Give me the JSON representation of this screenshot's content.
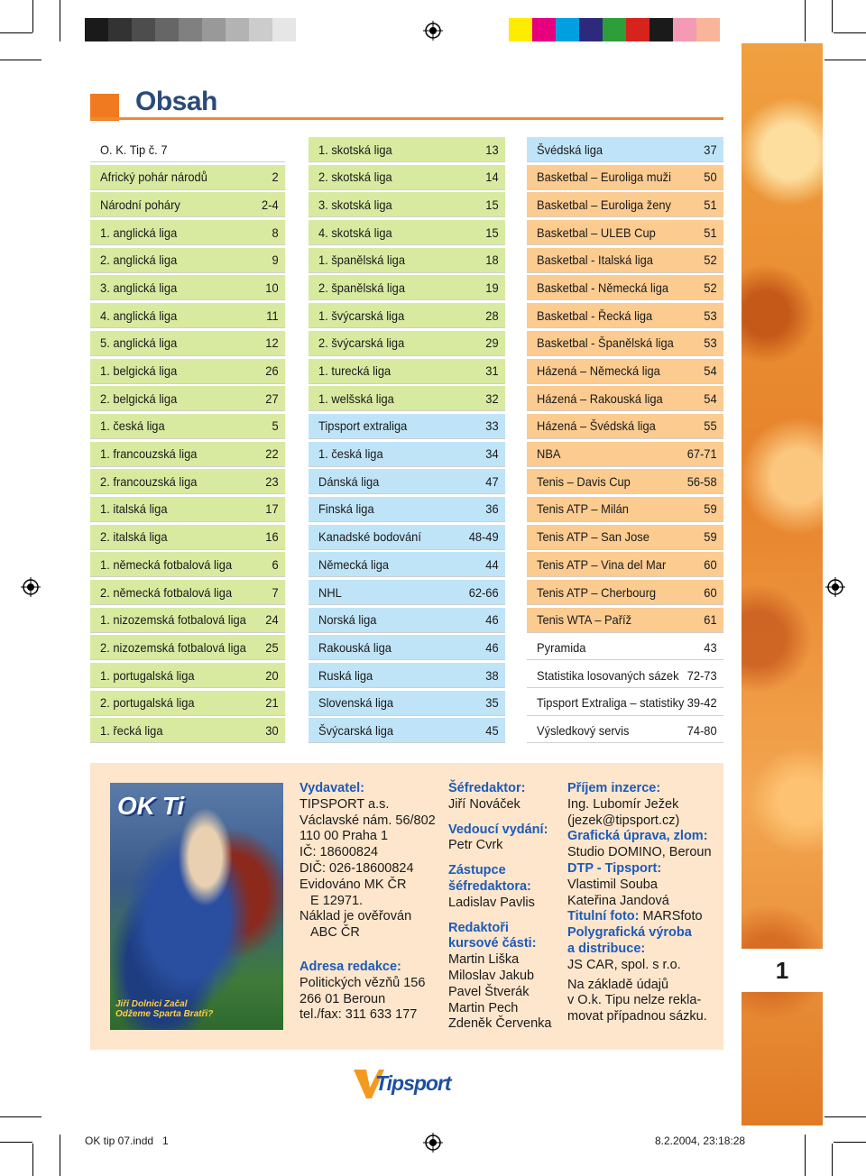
{
  "header": {
    "title": "Obsah"
  },
  "colors": {
    "accent": "#f07a20",
    "title": "#2a4a7a",
    "green": "#d8eaa0",
    "blue": "#bfe4f8",
    "orange": "#fbcb90",
    "white": "#ffffff"
  },
  "color_bar_left": [
    "#1a1a1a",
    "#333333",
    "#4d4d4d",
    "#666666",
    "#808080",
    "#999999",
    "#b3b3b3",
    "#cccccc",
    "#e6e6e6"
  ],
  "color_bar_right": [
    "#ffeb00",
    "#e6007e",
    "#00a0e0",
    "#2d2a7e",
    "#2e9e3a",
    "#d6231e",
    "#1a1a1a",
    "#f49ab4",
    "#f9b49a"
  ],
  "columns": [
    {
      "items": [
        {
          "label": "O. K. Tip č. 7",
          "page": "",
          "c": "white"
        },
        {
          "label": "Africký pohár národů",
          "page": "2",
          "c": "green"
        },
        {
          "label": "Národní poháry",
          "page": "2-4",
          "c": "green"
        },
        {
          "label": "1. anglická liga",
          "page": "8",
          "c": "green"
        },
        {
          "label": "2. anglická liga",
          "page": "9",
          "c": "green"
        },
        {
          "label": "3. anglická liga",
          "page": "10",
          "c": "green"
        },
        {
          "label": "4. anglická liga",
          "page": "11",
          "c": "green"
        },
        {
          "label": "5. anglická liga",
          "page": "12",
          "c": "green"
        },
        {
          "label": "1. belgická liga",
          "page": "26",
          "c": "green"
        },
        {
          "label": "2. belgická liga",
          "page": "27",
          "c": "green"
        },
        {
          "label": "1. česká liga",
          "page": "5",
          "c": "green"
        },
        {
          "label": "1. francouzská liga",
          "page": "22",
          "c": "green"
        },
        {
          "label": "2. francouzská liga",
          "page": "23",
          "c": "green"
        },
        {
          "label": "1. italská liga",
          "page": "17",
          "c": "green"
        },
        {
          "label": "2. italská liga",
          "page": "16",
          "c": "green"
        },
        {
          "label": "1. německá fotbalová liga",
          "page": "6",
          "c": "green"
        },
        {
          "label": "2. německá fotbalová liga",
          "page": "7",
          "c": "green"
        },
        {
          "label": "1. nizozemská fotbalová liga",
          "page": "24",
          "c": "green"
        },
        {
          "label": "2. nizozemská fotbalová liga",
          "page": "25",
          "c": "green"
        },
        {
          "label": "1. portugalská liga",
          "page": "20",
          "c": "green"
        },
        {
          "label": "2. portugalská liga",
          "page": "21",
          "c": "green"
        },
        {
          "label": "1. řecká liga",
          "page": "30",
          "c": "green"
        }
      ]
    },
    {
      "items": [
        {
          "label": "1. skotská liga",
          "page": "13",
          "c": "green"
        },
        {
          "label": "2. skotská liga",
          "page": "14",
          "c": "green"
        },
        {
          "label": "3. skotská liga",
          "page": "15",
          "c": "green"
        },
        {
          "label": "4. skotská liga",
          "page": "15",
          "c": "green"
        },
        {
          "label": "1. španělská liga",
          "page": "18",
          "c": "green"
        },
        {
          "label": "2. španělská liga",
          "page": "19",
          "c": "green"
        },
        {
          "label": "1. švýcarská liga",
          "page": "28",
          "c": "green"
        },
        {
          "label": "2. švýcarská liga",
          "page": "29",
          "c": "green"
        },
        {
          "label": "1. turecká liga",
          "page": "31",
          "c": "green"
        },
        {
          "label": "1. welšská liga",
          "page": "32",
          "c": "green"
        },
        {
          "label": "Tipsport extraliga",
          "page": "33",
          "c": "blue"
        },
        {
          "label": "1. česká liga",
          "page": "34",
          "c": "blue"
        },
        {
          "label": "Dánská liga",
          "page": "47",
          "c": "blue"
        },
        {
          "label": "Finská liga",
          "page": "36",
          "c": "blue"
        },
        {
          "label": "Kanadské bodování",
          "page": "48-49",
          "c": "blue"
        },
        {
          "label": "Německá liga",
          "page": "44",
          "c": "blue"
        },
        {
          "label": "NHL",
          "page": "62-66",
          "c": "blue"
        },
        {
          "label": "Norská liga",
          "page": "46",
          "c": "blue"
        },
        {
          "label": "Rakouská liga",
          "page": "46",
          "c": "blue"
        },
        {
          "label": "Ruská liga",
          "page": "38",
          "c": "blue"
        },
        {
          "label": "Slovenská liga",
          "page": "35",
          "c": "blue"
        },
        {
          "label": "Švýcarská liga",
          "page": "45",
          "c": "blue"
        }
      ]
    },
    {
      "items": [
        {
          "label": "Švédská liga",
          "page": "37",
          "c": "blue"
        },
        {
          "label": "Basketbal – Euroliga muži",
          "page": "50",
          "c": "orange"
        },
        {
          "label": "Basketbal – Euroliga ženy",
          "page": "51",
          "c": "orange"
        },
        {
          "label": "Basketbal – ULEB Cup",
          "page": "51",
          "c": "orange"
        },
        {
          "label": "Basketbal - Italská liga",
          "page": "52",
          "c": "orange"
        },
        {
          "label": "Basketbal - Německá liga",
          "page": "52",
          "c": "orange"
        },
        {
          "label": "Basketbal - Řecká liga",
          "page": "53",
          "c": "orange"
        },
        {
          "label": "Basketbal - Španělská liga",
          "page": "53",
          "c": "orange"
        },
        {
          "label": "Házená – Německá liga",
          "page": "54",
          "c": "orange"
        },
        {
          "label": "Házená – Rakouská liga",
          "page": "54",
          "c": "orange"
        },
        {
          "label": "Házená – Švédská liga",
          "page": "55",
          "c": "orange"
        },
        {
          "label": "NBA",
          "page": "67-71",
          "c": "orange"
        },
        {
          "label": "Tenis – Davis Cup",
          "page": "56-58",
          "c": "orange"
        },
        {
          "label": "Tenis ATP – Milán",
          "page": "59",
          "c": "orange"
        },
        {
          "label": "Tenis ATP – San Jose",
          "page": "59",
          "c": "orange"
        },
        {
          "label": "Tenis ATP – Vina del Mar",
          "page": "60",
          "c": "orange"
        },
        {
          "label": "Tenis ATP – Cherbourg",
          "page": "60",
          "c": "orange"
        },
        {
          "label": "Tenis WTA – Paříž",
          "page": "61",
          "c": "orange"
        },
        {
          "label": "Pyramida",
          "page": "43",
          "c": "white"
        },
        {
          "label": "Statistika losovaných sázek",
          "page": "72-73",
          "c": "white"
        },
        {
          "label": "Tipsport Extraliga – statistiky",
          "page": "39-42",
          "c": "white"
        },
        {
          "label": "Výsledkový servis",
          "page": "74-80",
          "c": "white"
        }
      ]
    }
  ],
  "cover": {
    "logo": "OK Ti",
    "caption": "Jiří Dolnici Začal\nOdžeme Sparta Bratři?"
  },
  "info": {
    "col1": {
      "publisher_h": "Vydavatel:",
      "publisher_lines": [
        "TIPSPORT a.s.",
        "Václavské nám. 56/802",
        "110 00 Praha 1",
        "IČ: 18600824",
        "DIČ: 026-18600824",
        "Evidováno MK ČR",
        "E 12971.",
        "Náklad je ověřován",
        "ABC ČR"
      ],
      "address_h": "Adresa redakce:",
      "address_lines": [
        "Politických vězňů 156",
        "266 01 Beroun",
        "tel./fax: 311 633 177"
      ]
    },
    "col2": {
      "chief_h": "Šéfredaktor:",
      "chief": "Jiří Nováček",
      "lead_h": "Vedoucí vydání:",
      "lead": "Petr Cvrk",
      "deputy_h1": "Zástupce",
      "deputy_h2": "šéfredaktora:",
      "deputy": "Ladislav Pavlis",
      "odds_h1": "Redaktoři",
      "odds_h2": "kursové části:",
      "odds_lines": [
        "Martin Liška",
        "Miloslav Jakub",
        "Pavel Štverák",
        "Martin Pech",
        "Zdeněk Červenka"
      ]
    },
    "col3": {
      "ads_h": "Příjem inzerce:",
      "ads_lines": [
        "Ing. Lubomír Ježek",
        "(jezek@tipsport.cz)"
      ],
      "graphic_h": "Grafická úprava, zlom:",
      "graphic": "Studio DOMINO, Beroun",
      "dtp_h": "DTP - Tipsport:",
      "dtp_lines": [
        "Vlastimil Souba",
        "Kateřina Jandová"
      ],
      "photo_h": "Titulní foto:",
      "photo": "MARSfoto",
      "print_h1": "Polygrafická výroba",
      "print_h2": "a distribuce:",
      "print": "JS CAR, spol. s r.o.",
      "note_lines": [
        "Na základě údajů",
        "v O.k. Tipu nelze rekla-",
        "movat případnou sázku."
      ]
    }
  },
  "brand": "Tipsport",
  "page_number": "1",
  "slug": {
    "file": "OK tip 07.indd   1",
    "date": "8.2.2004, 23:18:28"
  }
}
